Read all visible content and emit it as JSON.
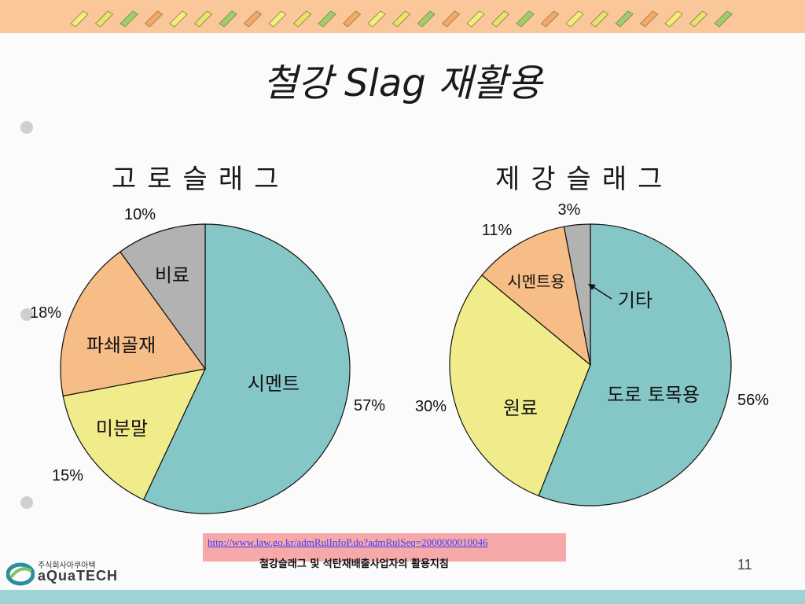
{
  "slide": {
    "title": "철강 Slag 재활용",
    "page_number": "11",
    "footer_caption": "철강슬래그 및 석탄재배출사업자의 활용지침",
    "source_link": "http://www.law.go.kr/admRulInfoP.do?admRulSeq=2000000010046",
    "logo": {
      "small_text": "주식회사아쿠아텍",
      "name": "aQuaTECH"
    },
    "colors": {
      "top_bar": "#f9c79a",
      "bottom_bar": "#9ed3d6",
      "teal": "#85c7c7",
      "yellow": "#f0ec8c",
      "orange": "#f7bd87",
      "gray": "#b2b2b2"
    }
  },
  "chart_data": [
    {
      "type": "pie",
      "title": "고로슬래그",
      "slices": [
        {
          "label": "시멘트",
          "value": 57,
          "pct_label": "57%",
          "color": "#85c7c7"
        },
        {
          "label": "미분말",
          "value": 15,
          "pct_label": "15%",
          "color": "#f0ec8c"
        },
        {
          "label": "파쇄골재",
          "value": 18,
          "pct_label": "18%",
          "color": "#f7bd87"
        },
        {
          "label": "비료",
          "value": 10,
          "pct_label": "10%",
          "color": "#b2b2b2"
        }
      ]
    },
    {
      "type": "pie",
      "title": "제강슬래그",
      "slices": [
        {
          "label": "도로 토목용",
          "value": 56,
          "pct_label": "56%",
          "color": "#85c7c7"
        },
        {
          "label": "원료",
          "value": 30,
          "pct_label": "30%",
          "color": "#f0ec8c"
        },
        {
          "label": "시멘트용",
          "value": 11,
          "pct_label": "11%",
          "color": "#f7bd87"
        },
        {
          "label": "기타",
          "value": 3,
          "pct_label": "3%",
          "color": "#b2b2b2"
        }
      ]
    }
  ]
}
